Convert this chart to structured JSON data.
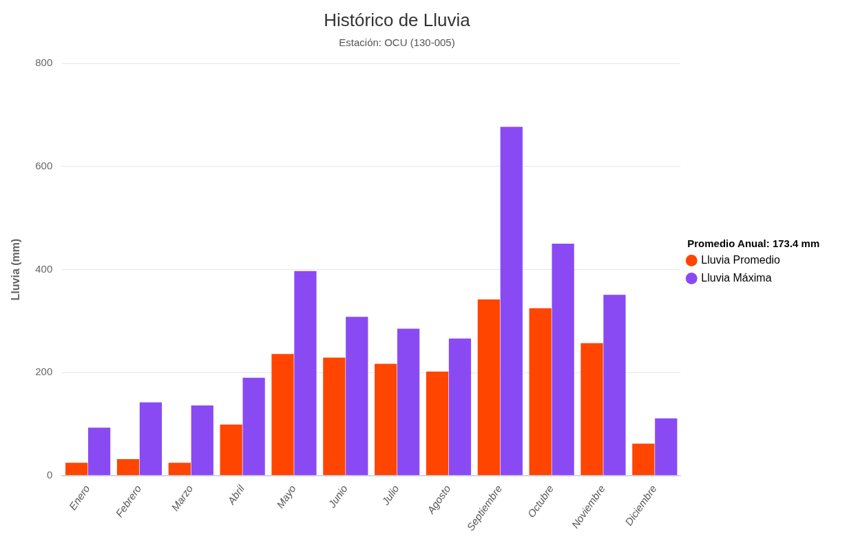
{
  "chart_data": {
    "type": "bar",
    "title": "Histórico de Lluvia",
    "subtitle": "Estación: OCU (130-005)",
    "ylabel": "Lluvia (mm)",
    "legend_title": "Promedio Anual: 173.4 mm",
    "categories": [
      "Enero",
      "Febrero",
      "Marzo",
      "Abril",
      "Mayo",
      "Junio",
      "Julio",
      "Agosto",
      "Septiembre",
      "Octubre",
      "Noviembre",
      "Diciembre"
    ],
    "series": [
      {
        "name": "Lluvia Promedio",
        "color": "#ff4500",
        "values": [
          25,
          32,
          25,
          99,
          236,
          229,
          217,
          202,
          342,
          325,
          257,
          62
        ]
      },
      {
        "name": "Lluvia Máxima",
        "color": "#8a4af3",
        "values": [
          93,
          142,
          136,
          190,
          397,
          308,
          285,
          266,
          677,
          450,
          351,
          111
        ]
      }
    ],
    "ylim": [
      0,
      800
    ],
    "yticks": [
      0,
      200,
      400,
      600,
      800
    ],
    "grid": "y",
    "legend": "right"
  }
}
